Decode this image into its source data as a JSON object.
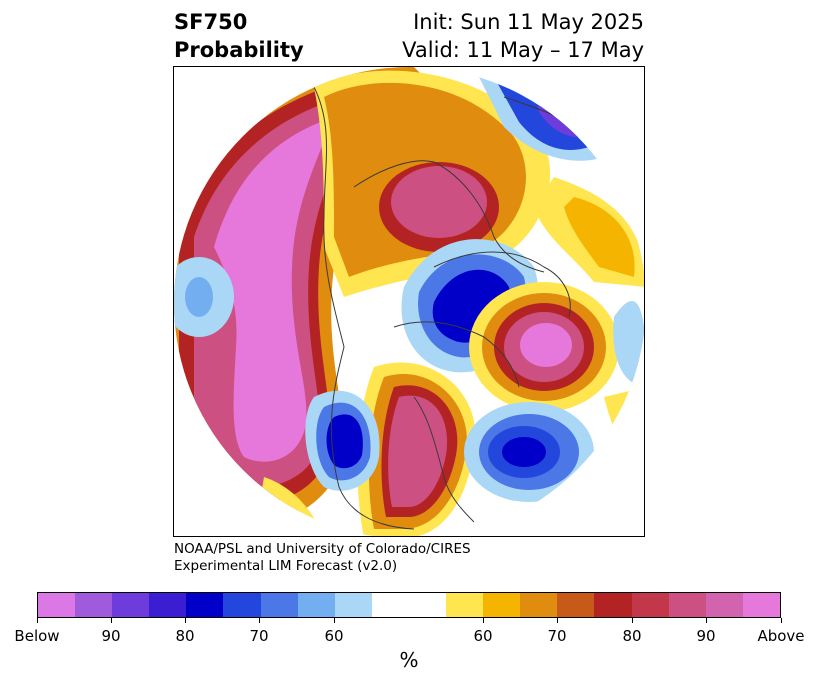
{
  "title": {
    "left_line1": "SF750",
    "left_line2": "Probability",
    "right_line1": "Init: Sun 11 May 2025",
    "right_line2": "Valid: 11 May – 17 May"
  },
  "credit": {
    "line1": "NOAA/PSL and University of Colorado/CIRES",
    "line2": "Experimental LIM Forecast (v2.0)"
  },
  "colorbar": {
    "unit": "%",
    "colors": [
      "#dc78e6",
      "#a05adc",
      "#6e3cdc",
      "#3c1ed2",
      "#0000c8",
      "#2346dc",
      "#4b78e6",
      "#73aff0",
      "#aad7f5",
      "#ffffff",
      "#ffffff",
      "#ffe650",
      "#f5b400",
      "#e08c0f",
      "#c85a19",
      "#b42323",
      "#c3374b",
      "#cd5082",
      "#d264af",
      "#e678dc"
    ],
    "tick_labels": [
      "Below",
      "90",
      "80",
      "70",
      "60",
      "60",
      "70",
      "80",
      "90",
      "Above"
    ]
  },
  "colors": {
    "above_max": "#e678dc",
    "above_high": "#cd5082",
    "above_mid": "#b42323",
    "above_low": "#e08c0f",
    "above_weak": "#ffe650",
    "below_max": "#0000c8",
    "below_high": "#2346dc",
    "below_mid": "#4b78e6",
    "below_low": "#73aff0",
    "below_weak": "#aad7f5",
    "coast": "#3a3a3a"
  }
}
